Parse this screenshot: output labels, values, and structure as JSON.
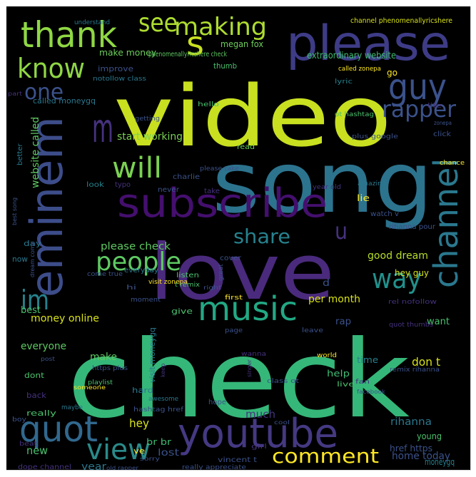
{
  "palette": {
    "background": "#000000",
    "yellow": "#c8e020",
    "lime": "#9fda3a",
    "green": "#4ac16d",
    "teal": "#23a983",
    "cyan": "#2a788e",
    "blue": "#3b528b",
    "purple": "#46327e",
    "dark_purple": "#440154"
  },
  "words": [
    {
      "text": "video",
      "color": "#c8e020"
    },
    {
      "text": "check",
      "color": "#35b779"
    },
    {
      "text": "song",
      "color": "#2c738e"
    },
    {
      "text": "love",
      "color": "#4a2a7c"
    },
    {
      "text": "subscribe",
      "color": "#440f6e"
    },
    {
      "text": "eminem",
      "color": "#3d4d8a"
    },
    {
      "text": "please",
      "color": "#3e3c86"
    },
    {
      "text": "youtube",
      "color": "#443982"
    },
    {
      "text": "thank",
      "color": "#8fd744"
    },
    {
      "text": "channel",
      "color": "#2a788e"
    },
    {
      "text": "guy",
      "color": "#3b528b"
    },
    {
      "text": "music",
      "color": "#22a884"
    },
    {
      "text": "will",
      "color": "#7ad151"
    },
    {
      "text": "people",
      "color": "#5ec962"
    },
    {
      "text": "quot",
      "color": "#31688e"
    },
    {
      "text": "view",
      "color": "#2a8a8a"
    },
    {
      "text": "know",
      "color": "#8fd744"
    },
    {
      "text": "im",
      "color": "#26828e"
    },
    {
      "text": "see",
      "color": "#addc30"
    },
    {
      "text": "making",
      "color": "#addc30"
    },
    {
      "text": "rapper",
      "color": "#3b528b"
    },
    {
      "text": "way",
      "color": "#21918c"
    },
    {
      "text": "comment",
      "color": "#fde725"
    },
    {
      "text": "share",
      "color": "#26828e"
    },
    {
      "text": "one",
      "color": "#3b528b"
    },
    {
      "text": "m",
      "color": "#46327e"
    },
    {
      "text": "s",
      "color": "#c8e020"
    },
    {
      "text": "u",
      "color": "#46327e"
    },
    {
      "text": "extraordinary website",
      "color": "#3fbc73"
    },
    {
      "text": "make money",
      "color": "#6ccd5a"
    },
    {
      "text": "megan fox",
      "color": "#6ccd5a"
    },
    {
      "text": "start working",
      "color": "#7ad151"
    },
    {
      "text": "website called",
      "color": "#5ec962"
    },
    {
      "text": "please check",
      "color": "#5ec962"
    },
    {
      "text": "good dream",
      "color": "#b5de2b"
    },
    {
      "text": "per month",
      "color": "#d8e219"
    },
    {
      "text": "money online",
      "color": "#d8e219"
    },
    {
      "text": "everyone",
      "color": "#5ec962"
    },
    {
      "text": "make",
      "color": "#5ec962"
    },
    {
      "text": "hey",
      "color": "#d8e219"
    },
    {
      "text": "new",
      "color": "#4ac16d"
    },
    {
      "text": "home today",
      "color": "#3b528b"
    },
    {
      "text": "don t",
      "color": "#d8e219"
    },
    {
      "text": "want",
      "color": "#4ac16d"
    },
    {
      "text": "rap",
      "color": "#3b528b"
    },
    {
      "text": "time",
      "color": "#26828e"
    },
    {
      "text": "help",
      "color": "#3fbc73"
    },
    {
      "text": "much",
      "color": "#46327e"
    },
    {
      "text": "year",
      "color": "#2a788e"
    },
    {
      "text": "lost",
      "color": "#3b528b"
    },
    {
      "text": "br br",
      "color": "#3fbc73"
    },
    {
      "text": "rihanna",
      "color": "#2a788e"
    },
    {
      "text": "young",
      "color": "#4ac16d"
    },
    {
      "text": "href https",
      "color": "#3b528b"
    },
    {
      "text": "moneygq",
      "color": "#26828e"
    },
    {
      "text": "hey guy",
      "color": "#d8e219"
    },
    {
      "text": "lie",
      "color": "#fde725"
    },
    {
      "text": "go",
      "color": "#fde725"
    },
    {
      "text": "d",
      "color": "#3b528b"
    },
    {
      "text": "thumb",
      "color": "#4ac16d"
    },
    {
      "text": "improve",
      "color": "#3b528b"
    },
    {
      "text": "called moneygq",
      "color": "#2a788e"
    },
    {
      "text": "phenomenallyricshere check",
      "color": "#5ec962"
    },
    {
      "text": "channel phenomenallyricshere",
      "color": "#d8e219"
    },
    {
      "text": "understand",
      "color": "#2a788e"
    },
    {
      "text": "notollow class",
      "color": "#2a788e"
    },
    {
      "text": "lyric",
      "color": "#26828e"
    },
    {
      "text": "called zonepa",
      "color": "#fde725"
    },
    {
      "text": "ot hashtag",
      "color": "#4ac16d"
    },
    {
      "text": "plus google",
      "color": "#3b528b"
    },
    {
      "text": "hello",
      "color": "#4ac16d"
    },
    {
      "text": "getting",
      "color": "#3b528b"
    },
    {
      "text": "read",
      "color": "#6ccd5a"
    },
    {
      "text": "please take",
      "color": "#3b528b"
    },
    {
      "text": "charlie",
      "color": "#3b528b"
    },
    {
      "text": "take",
      "color": "#46327e"
    },
    {
      "text": "look",
      "color": "#26828e"
    },
    {
      "text": "typo",
      "color": "#46327e"
    },
    {
      "text": "never",
      "color": "#3b528b"
    },
    {
      "text": "year old",
      "color": "#46327e"
    },
    {
      "text": "watch v",
      "color": "#3b528b"
    },
    {
      "text": "rihanna pour",
      "color": "#3b528b"
    },
    {
      "text": "amazing",
      "color": "#2a788e"
    },
    {
      "text": "chance",
      "color": "#fde725"
    },
    {
      "text": "click",
      "color": "#3b528b"
    },
    {
      "text": "zonepa",
      "color": "#3b528b"
    },
    {
      "text": "life",
      "color": "#46327e"
    },
    {
      "text": "better",
      "color": "#2a788e"
    },
    {
      "text": "part",
      "color": "#46327e"
    },
    {
      "text": "best song",
      "color": "#3b528b"
    },
    {
      "text": "day",
      "color": "#2a788e"
    },
    {
      "text": "now",
      "color": "#2a788e"
    },
    {
      "text": "dream come",
      "color": "#3b528b"
    },
    {
      "text": "come true",
      "color": "#3b528b"
    },
    {
      "text": "listen",
      "color": "#4ac16d"
    },
    {
      "text": "everyday",
      "color": "#2a788e"
    },
    {
      "text": "visit zonepa",
      "color": "#fde725"
    },
    {
      "text": "t remix",
      "color": "#4ac16d"
    },
    {
      "text": "hi",
      "color": "#3b528b"
    },
    {
      "text": "moment",
      "color": "#3b528b"
    },
    {
      "text": "great",
      "color": "#3b528b"
    },
    {
      "text": "cover",
      "color": "#3b528b"
    },
    {
      "text": "right",
      "color": "#3b528b"
    },
    {
      "text": "first",
      "color": "#fde725"
    },
    {
      "text": "rel nofollow",
      "color": "#46327e"
    },
    {
      "text": "quot thumbs",
      "color": "#46327e"
    },
    {
      "text": "best",
      "color": "#4ac16d"
    },
    {
      "text": "give",
      "color": "#4ac16d"
    },
    {
      "text": "page",
      "color": "#3b528b"
    },
    {
      "text": "leave",
      "color": "#3b528b"
    },
    {
      "text": "singer",
      "color": "#46327e"
    },
    {
      "text": "visit moneygq",
      "color": "#2a788e"
    },
    {
      "text": "keep",
      "color": "#46327e"
    },
    {
      "text": "post",
      "color": "#3b528b"
    },
    {
      "text": "dont",
      "color": "#4ac16d"
    },
    {
      "text": "back",
      "color": "#46327e"
    },
    {
      "text": "someone",
      "color": "#fde725"
    },
    {
      "text": "really",
      "color": "#4ac16d"
    },
    {
      "text": "maybe",
      "color": "#2a788e"
    },
    {
      "text": "boy",
      "color": "#3b528b"
    },
    {
      "text": "beat",
      "color": "#46327e"
    },
    {
      "text": "wanna",
      "color": "#46327e"
    },
    {
      "text": "world",
      "color": "#fde725"
    },
    {
      "text": "https plus",
      "color": "#3b528b"
    },
    {
      "text": "playlist",
      "color": "#4ac16d"
    },
    {
      "text": "class ot",
      "color": "#3b528b"
    },
    {
      "text": "fan",
      "color": "#46327e"
    },
    {
      "text": "live",
      "color": "#4ac16d"
    },
    {
      "text": "facebook",
      "color": "#3b528b"
    },
    {
      "text": "remix rihanna",
      "color": "#3b528b"
    },
    {
      "text": "hope",
      "color": "#3b528b"
    },
    {
      "text": "awesome",
      "color": "#2a788e"
    },
    {
      "text": "hashtag href",
      "color": "#3b528b"
    },
    {
      "text": "cool",
      "color": "#3b528b"
    },
    {
      "text": "hard",
      "color": "#2a788e"
    },
    {
      "text": "ve",
      "color": "#fde725"
    },
    {
      "text": "dope channel",
      "color": "#46327e"
    },
    {
      "text": "old rapper",
      "color": "#3b528b"
    },
    {
      "text": "sorry",
      "color": "#3b528b"
    },
    {
      "text": "vincent t",
      "color": "#3b528b"
    },
    {
      "text": "girl",
      "color": "#46327e"
    },
    {
      "text": "really appreciate",
      "color": "#3b528b"
    }
  ]
}
